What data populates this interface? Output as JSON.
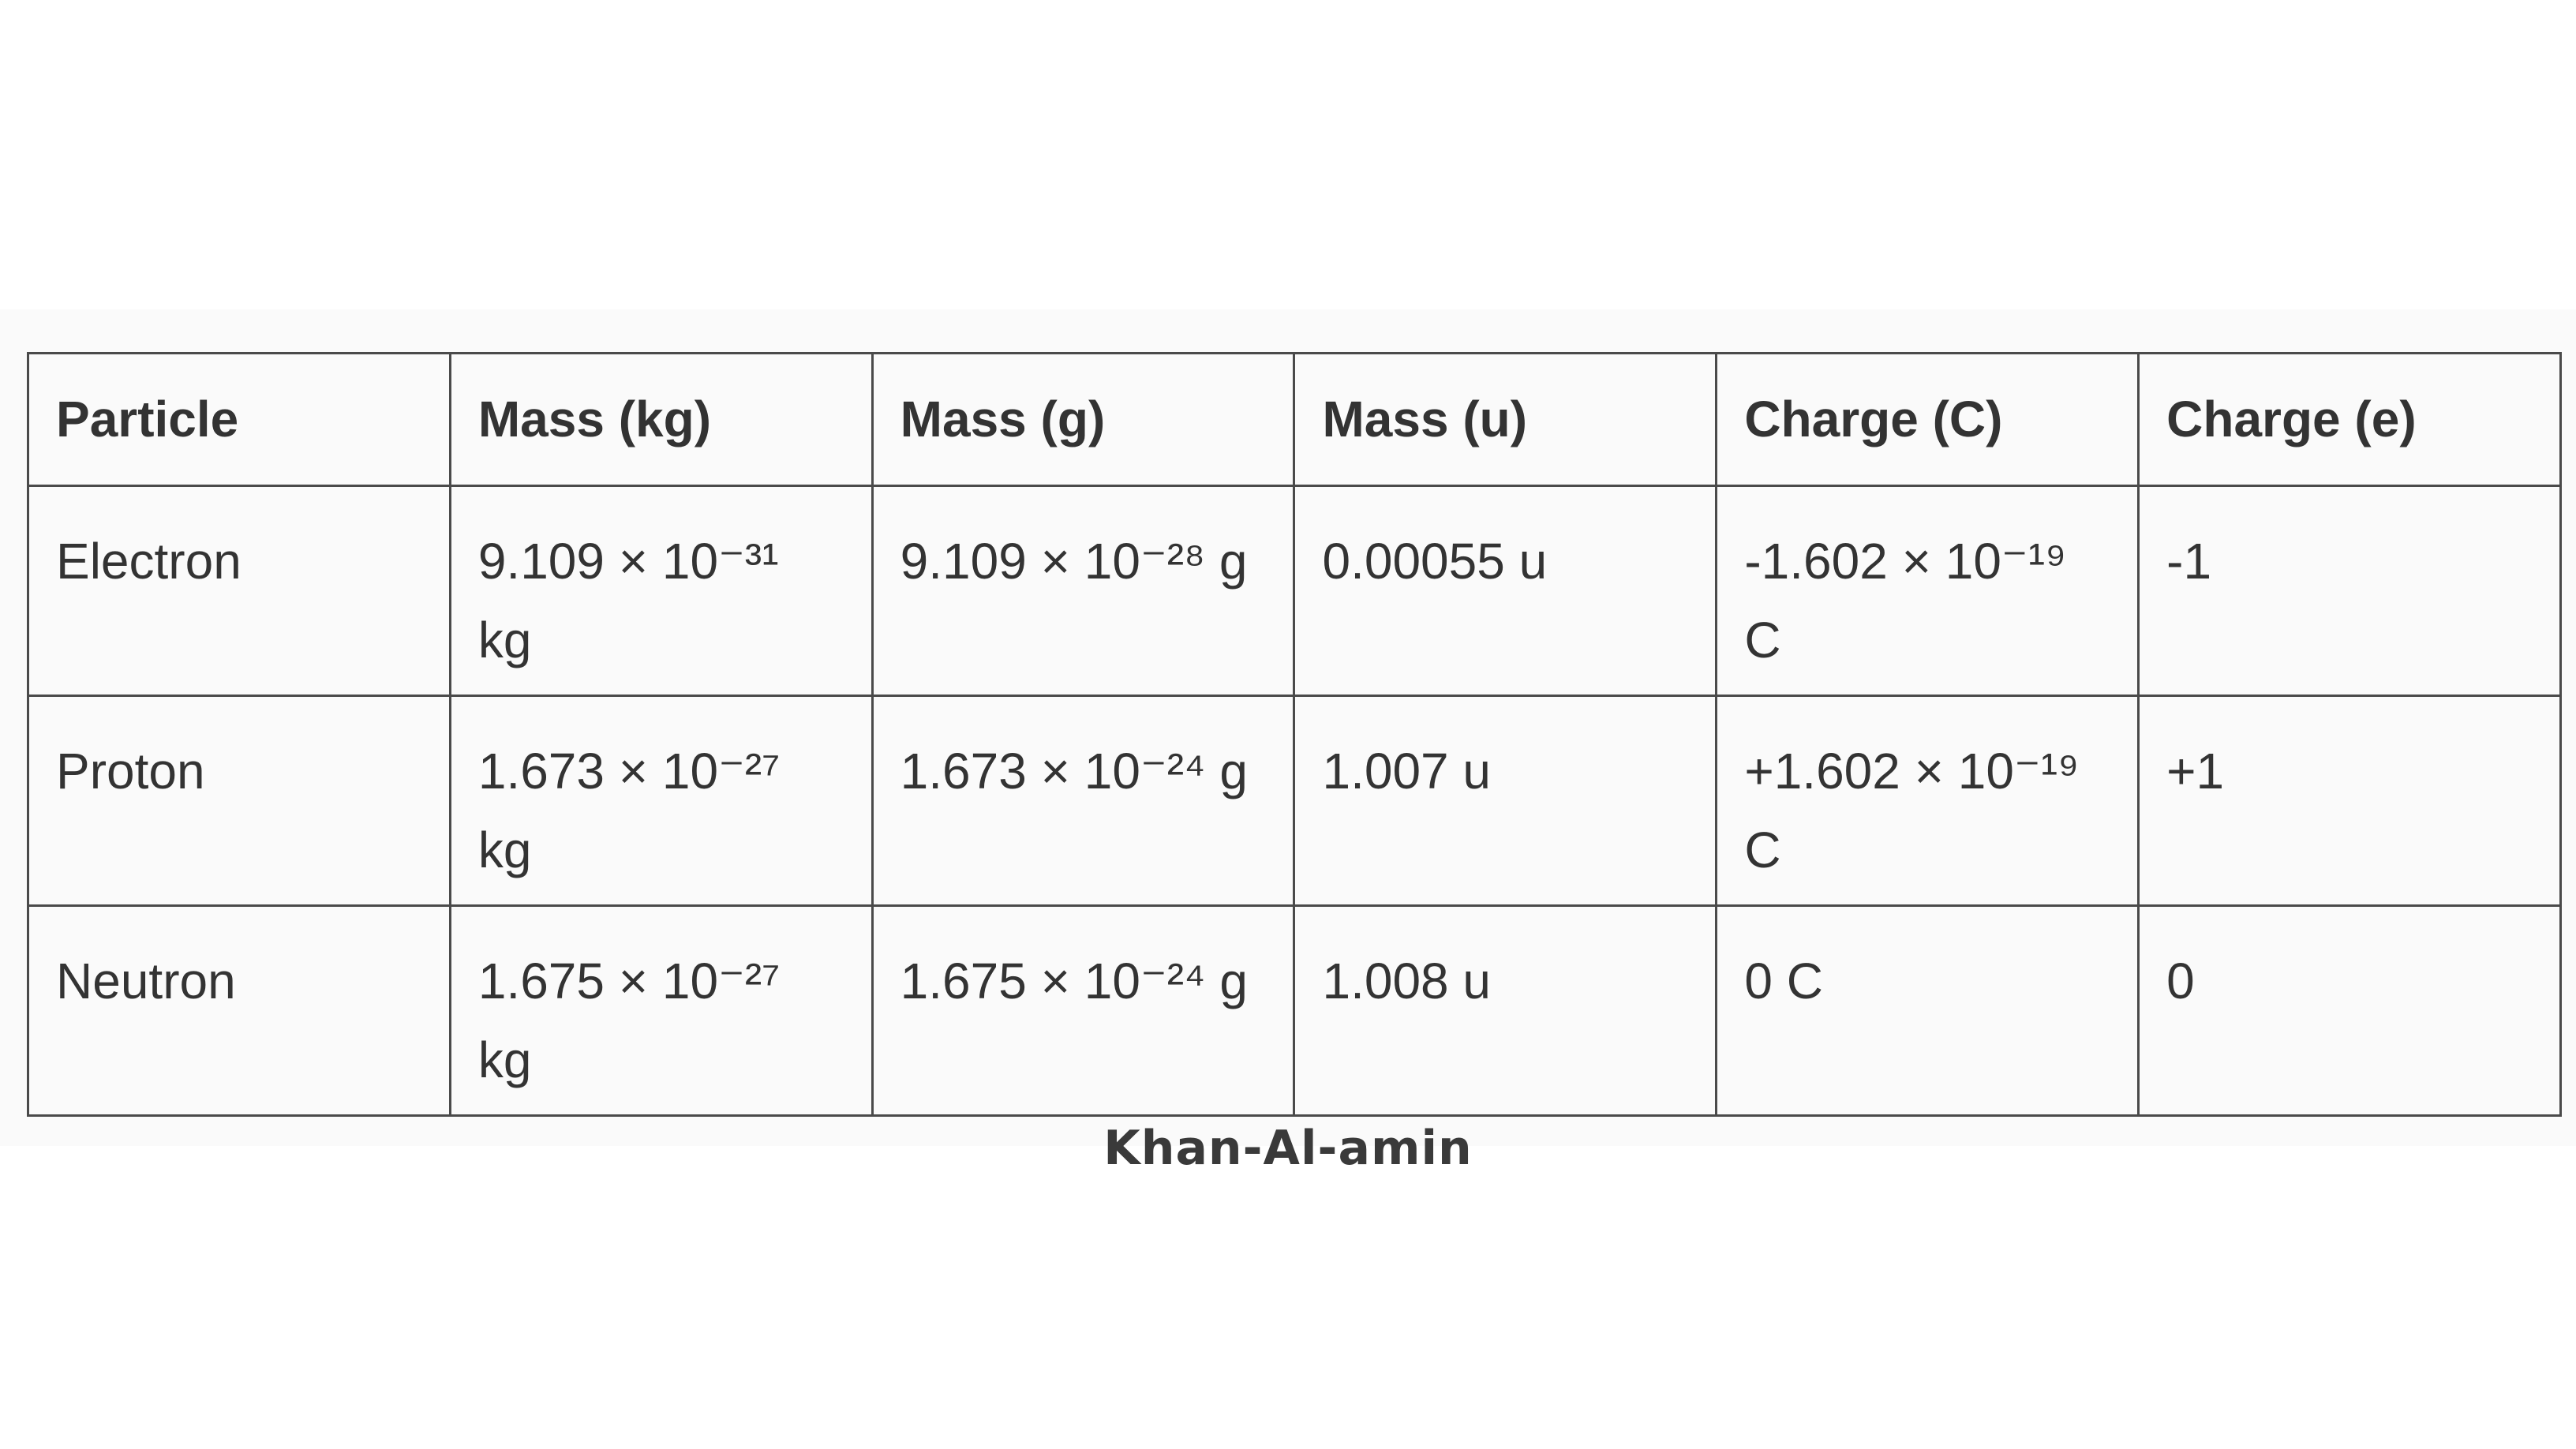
{
  "table": {
    "headers": [
      "Particle",
      "Mass (kg)",
      "Mass (g)",
      "Mass (u)",
      "Charge (C)",
      "Charge (e)"
    ],
    "rows": [
      [
        "Electron",
        "9.109 × 10⁻³¹ kg",
        "9.109 × 10⁻²⁸ g",
        "0.00055 u",
        "-1.602 × 10⁻¹⁹ C",
        "-1"
      ],
      [
        "Proton",
        "1.673 × 10⁻²⁷ kg",
        "1.673 × 10⁻²⁴ g",
        "1.007 u",
        "+1.602 × 10⁻¹⁹ C",
        "+1"
      ],
      [
        "Neutron",
        "1.675 × 10⁻²⁷ kg",
        "1.675 × 10⁻²⁴ g",
        "1.008 u",
        "0 C",
        "0"
      ]
    ]
  },
  "caption": "Khan-Al-amin"
}
